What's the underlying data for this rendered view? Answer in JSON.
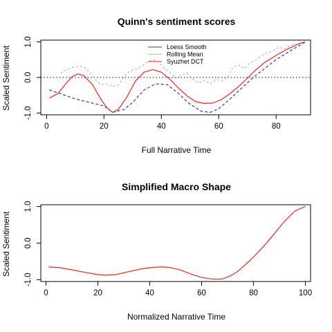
{
  "chart_data": [
    {
      "type": "line",
      "title": "Quinn's sentiment scores",
      "xlabel": "Full Narrative Time",
      "ylabel": "Scaled Sentiment",
      "xlim": [
        -2,
        92
      ],
      "ylim": [
        -1.05,
        1.05
      ],
      "x_ticks": [
        0,
        20,
        40,
        60,
        80
      ],
      "y_ticks": [
        -1.0,
        0.0,
        1.0
      ],
      "x_tick_labels": [
        "0",
        "20",
        "40",
        "60",
        "80"
      ],
      "y_tick_labels": [
        "-1.0",
        "0.0",
        "1.0"
      ],
      "reference_line": {
        "y": 0,
        "style": "dotted",
        "color": "#000000"
      },
      "legend": {
        "position": "top-center",
        "entries": [
          {
            "label": "Loess Smooth",
            "color": "#3030e0",
            "style": "solid"
          },
          {
            "label": "Rolling Mean",
            "color": "#b8b8b8",
            "style": "solid"
          },
          {
            "label": "Syuzhet DCT",
            "color": "#ff2020",
            "style": "solid"
          }
        ]
      },
      "series": [
        {
          "name": "Loess Smooth",
          "color": "#3030e0",
          "dash": "4,3",
          "x": [
            1,
            5,
            10,
            15,
            20,
            23,
            27,
            30,
            34,
            38,
            42,
            46,
            50,
            54,
            57,
            60,
            64,
            68,
            72,
            76,
            80,
            85,
            90
          ],
          "y": [
            -0.35,
            -0.46,
            -0.6,
            -0.7,
            -0.8,
            -0.98,
            -0.9,
            -0.7,
            -0.35,
            -0.18,
            -0.2,
            -0.45,
            -0.75,
            -0.95,
            -0.98,
            -0.88,
            -0.6,
            -0.3,
            0.0,
            0.25,
            0.5,
            0.75,
            0.99
          ]
        },
        {
          "name": "Rolling Mean",
          "color": "#b8b8b8",
          "dash": "3,3",
          "x": [
            5,
            7,
            9,
            11,
            13,
            15,
            17,
            19,
            21,
            23,
            25,
            27,
            29,
            31,
            33,
            35,
            37,
            39,
            41,
            43,
            45,
            47,
            49,
            51,
            53,
            55,
            57,
            59,
            61,
            63,
            65,
            67,
            69,
            71,
            73,
            75,
            77,
            79,
            81,
            83,
            85,
            87
          ],
          "y": [
            0.12,
            0.22,
            0.28,
            0.32,
            0.3,
            0.15,
            -0.05,
            -0.2,
            -0.18,
            -0.25,
            -0.22,
            0.02,
            0.18,
            0.22,
            0.32,
            0.42,
            0.5,
            0.45,
            0.25,
            0.15,
            -0.02,
            0.05,
            0.12,
            -0.05,
            -0.15,
            -0.08,
            -0.18,
            -0.05,
            -0.1,
            0.0,
            0.3,
            0.35,
            0.25,
            0.42,
            0.5,
            0.62,
            0.7,
            0.75,
            0.85,
            0.8,
            0.9,
            0.95
          ]
        },
        {
          "name": "Syuzhet DCT",
          "color": "#ff2020",
          "dash": "",
          "x": [
            1,
            4,
            7,
            9,
            11,
            13,
            16,
            19,
            21,
            23,
            25,
            28,
            31,
            34,
            37,
            40,
            43,
            46,
            49,
            52,
            55,
            58,
            61,
            64,
            67,
            70,
            73,
            76,
            80,
            84,
            88,
            90
          ],
          "y": [
            -0.58,
            -0.45,
            -0.15,
            0.03,
            0.1,
            0.05,
            -0.2,
            -0.62,
            -0.85,
            -0.98,
            -0.9,
            -0.55,
            -0.1,
            0.15,
            0.22,
            0.15,
            -0.05,
            -0.3,
            -0.52,
            -0.68,
            -0.73,
            -0.72,
            -0.62,
            -0.45,
            -0.25,
            -0.02,
            0.22,
            0.42,
            0.62,
            0.8,
            0.95,
            1.0
          ]
        }
      ]
    },
    {
      "type": "line",
      "title": "Simplified Macro Shape",
      "xlabel": "Normalized Narrative Time",
      "ylabel": "Scaled Sentiment",
      "xlim": [
        -2,
        102
      ],
      "ylim": [
        -1.05,
        1.05
      ],
      "x_ticks": [
        0,
        20,
        40,
        60,
        80,
        100
      ],
      "y_ticks": [
        -1.0,
        0.0,
        1.0
      ],
      "x_tick_labels": [
        "0",
        "20",
        "40",
        "60",
        "80",
        "100"
      ],
      "y_tick_labels": [
        "-1.0",
        "0.0",
        "1.0"
      ],
      "series": [
        {
          "color": "#ff2020",
          "dash": "",
          "x": [
            1,
            5,
            10,
            15,
            20,
            23,
            27,
            32,
            37,
            42,
            45,
            48,
            52,
            56,
            60,
            64,
            66,
            68,
            71,
            74,
            77,
            80,
            84,
            88,
            92,
            96,
            100
          ],
          "y": [
            -0.65,
            -0.67,
            -0.73,
            -0.8,
            -0.86,
            -0.88,
            -0.86,
            -0.78,
            -0.7,
            -0.66,
            -0.65,
            -0.67,
            -0.74,
            -0.85,
            -0.94,
            -0.98,
            -0.99,
            -0.98,
            -0.9,
            -0.77,
            -0.58,
            -0.38,
            -0.08,
            0.25,
            0.6,
            0.88,
            1.0
          ]
        }
      ]
    }
  ]
}
